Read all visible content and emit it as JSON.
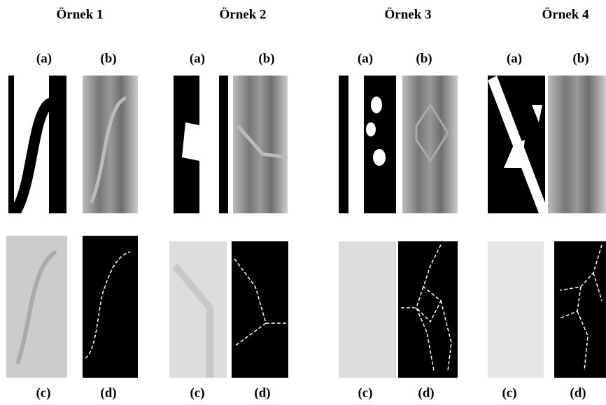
{
  "examples": [
    {
      "title": "Örnek 1",
      "labels": [
        "(a)",
        "(b)",
        "(c)",
        "(d)"
      ]
    },
    {
      "title": "Örnek 2",
      "labels": [
        "(a)",
        "(b)",
        "(c)",
        "(d)"
      ]
    },
    {
      "title": "Örnek 3",
      "labels": [
        "(a)",
        "(b)",
        "(c)",
        "(d)"
      ]
    },
    {
      "title": "Örnek 4",
      "labels": [
        "(a)",
        "(b)",
        "(c)",
        "(d)"
      ]
    }
  ]
}
